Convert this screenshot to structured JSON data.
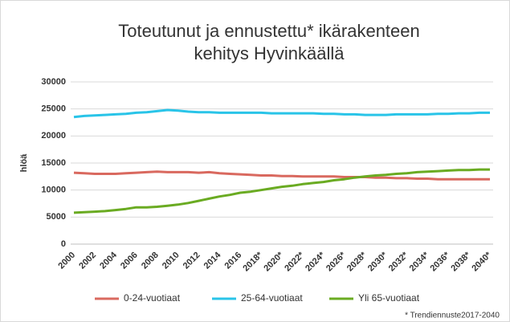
{
  "chart_data": {
    "type": "line",
    "title": [
      "Toteutunut ja ennustettu* ikärakenteen",
      "kehitys Hyvinkäällä"
    ],
    "y_label": "hlöä",
    "footnote": "* Trendiennuste2017-2040",
    "categories": [
      "2000",
      null,
      "2002",
      null,
      "2004",
      null,
      "2006",
      null,
      "2008",
      null,
      "2010",
      null,
      "2012",
      null,
      "2014",
      null,
      "2016",
      null,
      "2018*",
      null,
      "2020*",
      null,
      "2022*",
      null,
      "2024*",
      null,
      "2026*",
      null,
      "2028*",
      null,
      "2030*",
      null,
      "2032*",
      null,
      "2034*",
      null,
      "2036*",
      null,
      "2038*",
      null,
      "2040*"
    ],
    "series": [
      {
        "name": "0-24-vuotiaat",
        "color": "#d9695f",
        "values": [
          13200,
          13100,
          13000,
          13000,
          13000,
          13100,
          13200,
          13300,
          13400,
          13300,
          13300,
          13300,
          13200,
          13300,
          13100,
          13000,
          12900,
          12800,
          12700,
          12700,
          12600,
          12600,
          12500,
          12500,
          12500,
          12500,
          12400,
          12400,
          12400,
          12300,
          12300,
          12200,
          12200,
          12100,
          12100,
          12000,
          12000,
          12000,
          12000,
          12000,
          12000
        ]
      },
      {
        "name": "25-64-vuotiaat",
        "color": "#29c4e8",
        "values": [
          23500,
          23700,
          23800,
          23900,
          24000,
          24100,
          24300,
          24400,
          24600,
          24800,
          24700,
          24500,
          24400,
          24400,
          24300,
          24300,
          24300,
          24300,
          24300,
          24200,
          24200,
          24200,
          24200,
          24200,
          24100,
          24100,
          24000,
          24000,
          23900,
          23900,
          23900,
          24000,
          24000,
          24000,
          24000,
          24100,
          24100,
          24200,
          24200,
          24300,
          24300
        ]
      },
      {
        "name": "Yli 65-vuotiaat",
        "color": "#6aab22",
        "values": [
          5800,
          5900,
          6000,
          6100,
          6300,
          6500,
          6800,
          6800,
          6900,
          7100,
          7300,
          7600,
          8000,
          8400,
          8800,
          9100,
          9500,
          9700,
          10000,
          10300,
          10600,
          10800,
          11100,
          11300,
          11500,
          11800,
          12000,
          12300,
          12500,
          12700,
          12800,
          13000,
          13100,
          13300,
          13400,
          13500,
          13600,
          13700,
          13700,
          13800,
          13800
        ]
      }
    ],
    "ylim": [
      0,
      30000
    ],
    "yticks": [
      0,
      5000,
      10000,
      15000,
      20000,
      25000,
      30000
    ],
    "grid": true,
    "legend": "bottom"
  }
}
